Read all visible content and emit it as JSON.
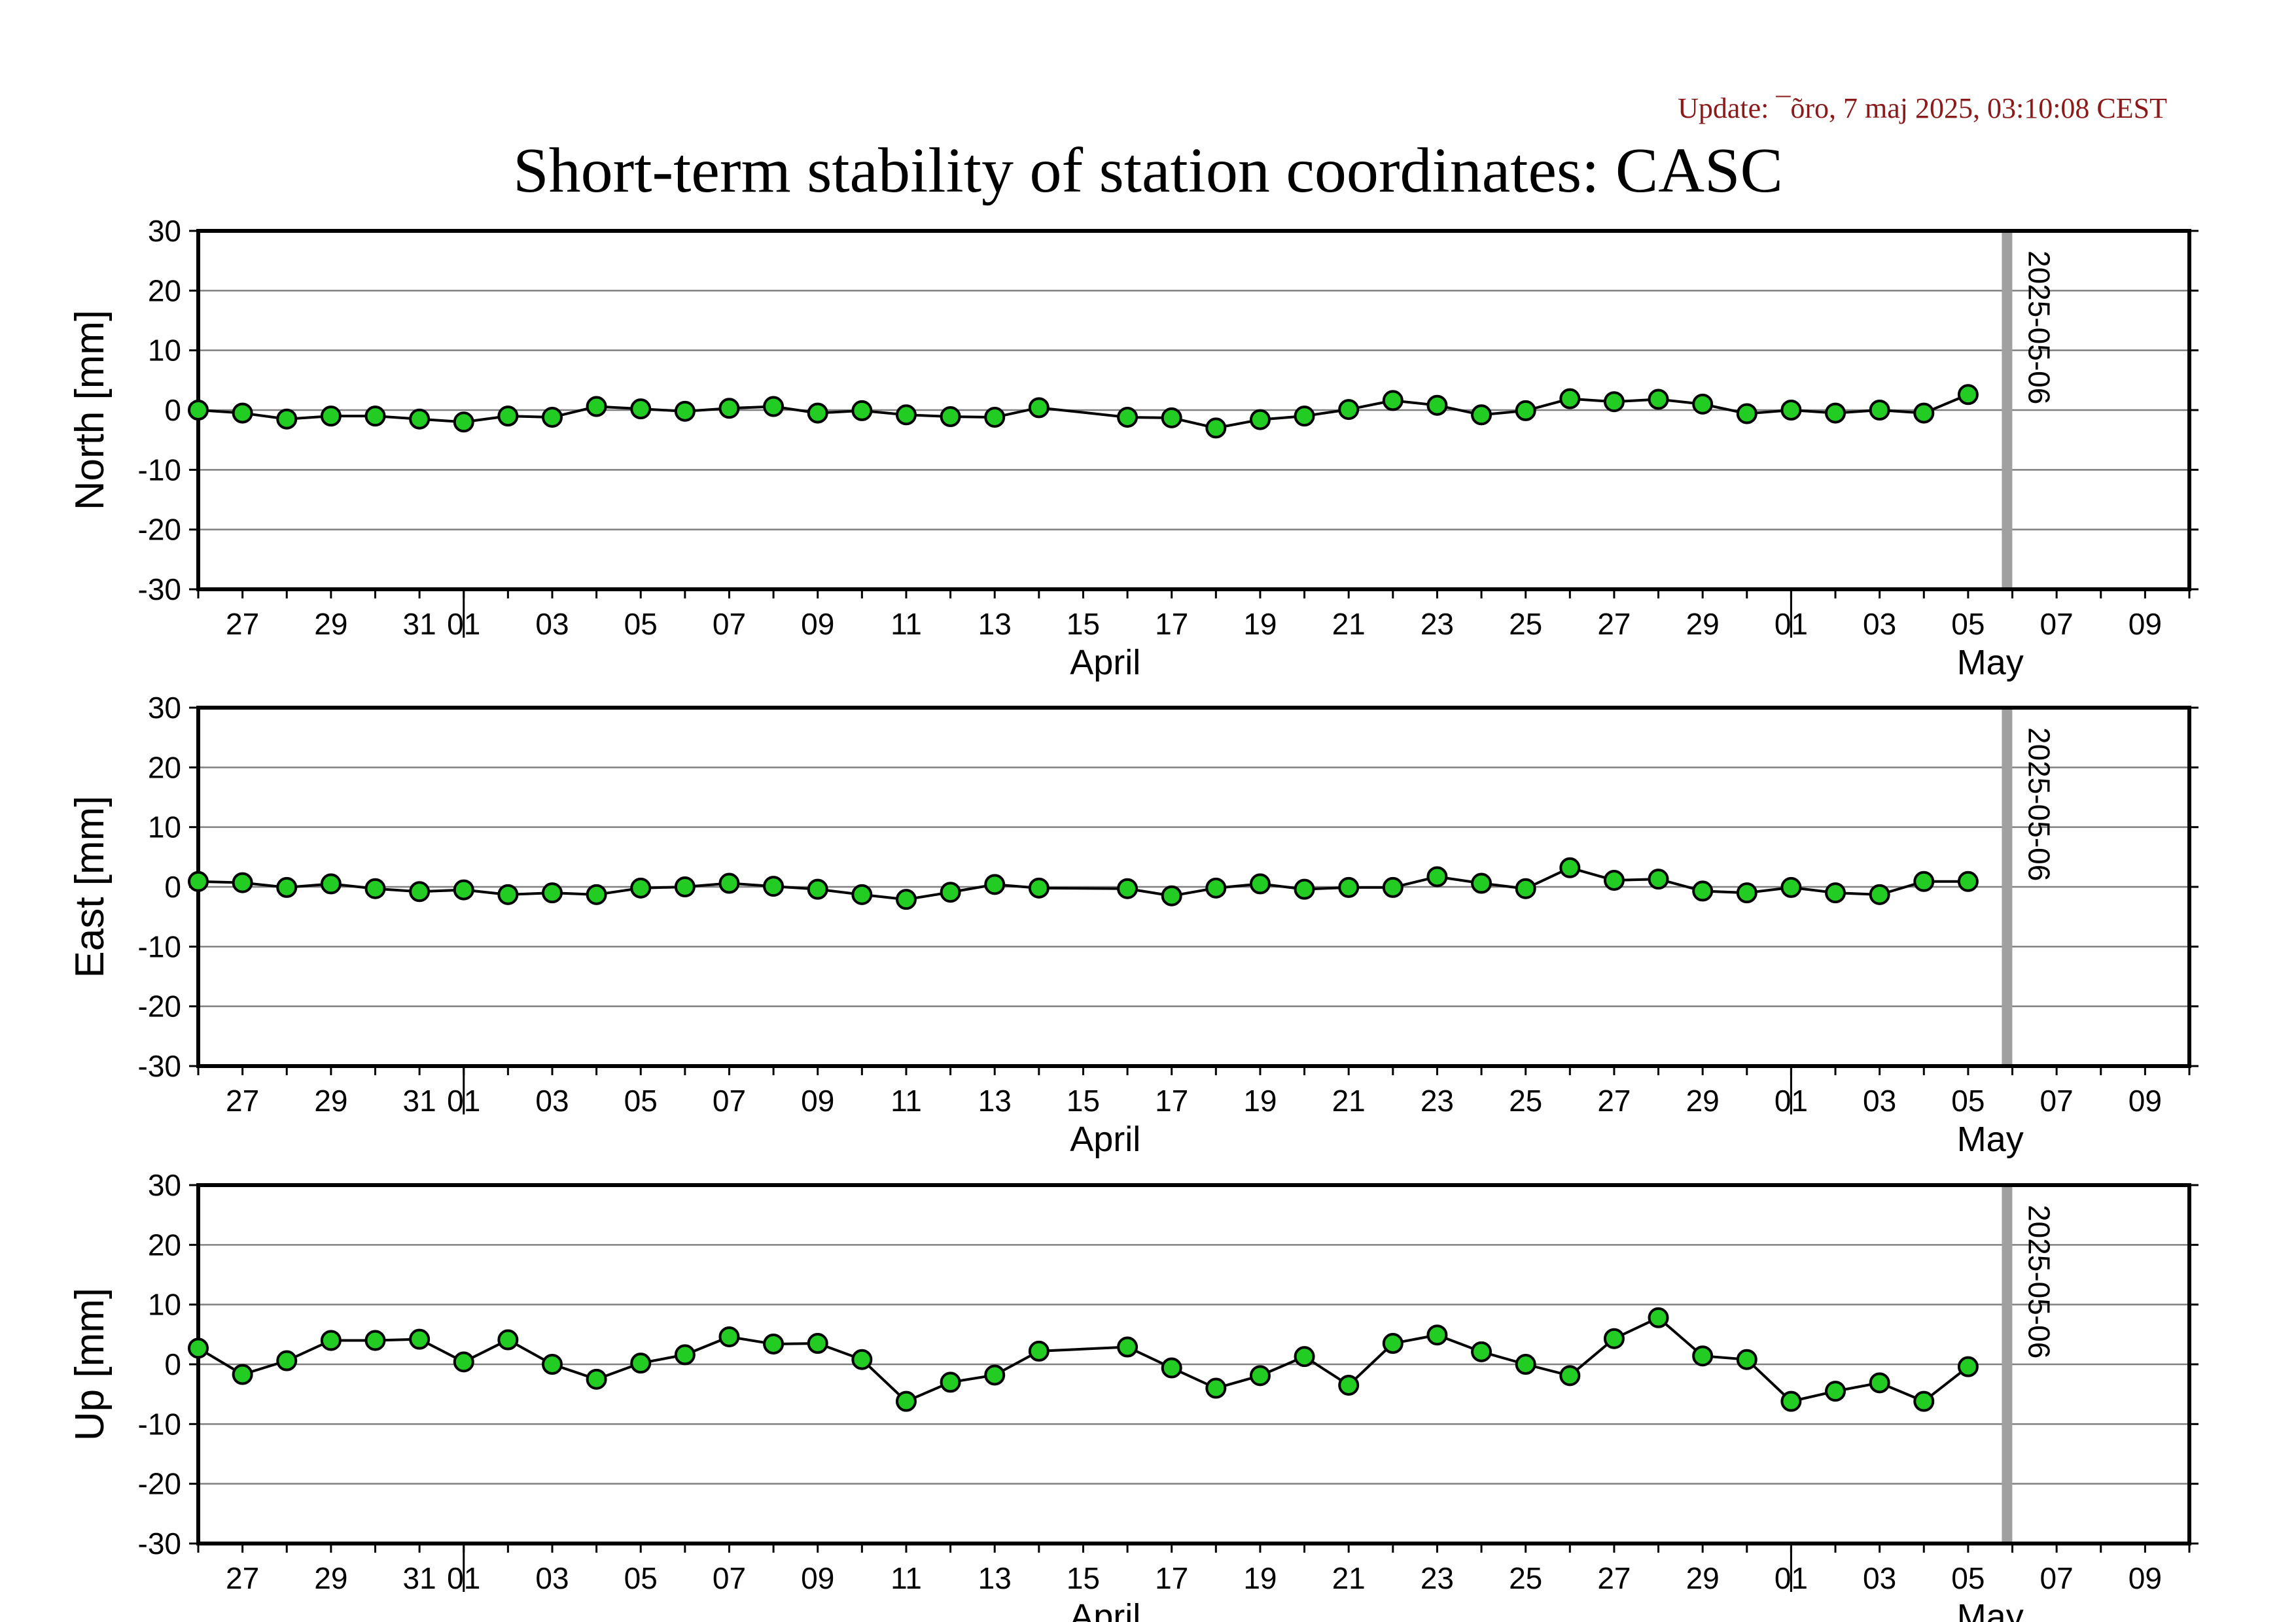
{
  "header": {
    "update": "Update: ¯õro, 7 maj 2025, 03:10:08 CEST",
    "title": "Short-term stability of station coordinates: CASC"
  },
  "colors": {
    "marker_fill": "#22cc22",
    "marker_stroke": "#000000",
    "line": "#000000",
    "grid": "#808080",
    "current_date_band": "#a0a0a0",
    "update_text": "#8b1a1a"
  },
  "chart_data": [
    {
      "type": "line",
      "ylabel": "North [mm]",
      "ylim": [
        -30,
        30
      ],
      "yticks": [
        30,
        20,
        10,
        0,
        -10,
        -20,
        -30
      ],
      "grid": true,
      "marker_date": "2025-05-06",
      "x_range": [
        "2025-03-26",
        "2025-05-10"
      ],
      "x_tick_dates": [
        "2025-03-27",
        "2025-03-29",
        "2025-03-31",
        "2025-04-01",
        "2025-04-03",
        "2025-04-05",
        "2025-04-07",
        "2025-04-09",
        "2025-04-11",
        "2025-04-13",
        "2025-04-15",
        "2025-04-17",
        "2025-04-19",
        "2025-04-21",
        "2025-04-23",
        "2025-04-25",
        "2025-04-27",
        "2025-04-29",
        "2025-05-01",
        "2025-05-03",
        "2025-05-05",
        "2025-05-07",
        "2025-05-09"
      ],
      "x_tick_labels": [
        "27",
        "29",
        "31",
        "01",
        "03",
        "05",
        "07",
        "09",
        "11",
        "13",
        "15",
        "17",
        "19",
        "21",
        "23",
        "25",
        "27",
        "29",
        "01",
        "03",
        "05",
        "07",
        "09"
      ],
      "month_labels": [
        {
          "date": "2025-04-15",
          "label": "April"
        },
        {
          "date": "2025-05-05",
          "label": "May"
        }
      ],
      "month_boundaries": [
        "2025-04-01",
        "2025-05-01"
      ],
      "x": [
        "2025-03-26",
        "2025-03-27",
        "2025-03-28",
        "2025-03-29",
        "2025-03-30",
        "2025-03-31",
        "2025-04-01",
        "2025-04-02",
        "2025-04-03",
        "2025-04-04",
        "2025-04-05",
        "2025-04-06",
        "2025-04-07",
        "2025-04-08",
        "2025-04-09",
        "2025-04-10",
        "2025-04-11",
        "2025-04-12",
        "2025-04-13",
        "2025-04-14",
        "2025-04-16",
        "2025-04-17",
        "2025-04-18",
        "2025-04-19",
        "2025-04-20",
        "2025-04-21",
        "2025-04-22",
        "2025-04-23",
        "2025-04-24",
        "2025-04-25",
        "2025-04-26",
        "2025-04-27",
        "2025-04-28",
        "2025-04-29",
        "2025-04-30",
        "2025-05-01",
        "2025-05-02",
        "2025-05-03",
        "2025-05-04",
        "2025-05-05"
      ],
      "values": [
        0.0,
        -0.5,
        -1.5,
        -1.0,
        -1.0,
        -1.5,
        -2.0,
        -1.0,
        -1.2,
        0.6,
        0.2,
        -0.2,
        0.3,
        0.6,
        -0.5,
        -0.1,
        -0.8,
        -1.1,
        -1.2,
        0.4,
        -1.2,
        -1.3,
        -3.0,
        -1.6,
        -1.0,
        0.1,
        1.6,
        0.8,
        -0.8,
        -0.1,
        1.9,
        1.4,
        1.8,
        1.0,
        -0.6,
        0.0,
        -0.5,
        0.0,
        -0.5,
        2.6
      ]
    },
    {
      "type": "line",
      "ylabel": "East [mm]",
      "ylim": [
        -30,
        30
      ],
      "yticks": [
        30,
        20,
        10,
        0,
        -10,
        -20,
        -30
      ],
      "grid": true,
      "marker_date": "2025-05-06",
      "x_range": [
        "2025-03-26",
        "2025-05-10"
      ],
      "x_tick_dates": [
        "2025-03-27",
        "2025-03-29",
        "2025-03-31",
        "2025-04-01",
        "2025-04-03",
        "2025-04-05",
        "2025-04-07",
        "2025-04-09",
        "2025-04-11",
        "2025-04-13",
        "2025-04-15",
        "2025-04-17",
        "2025-04-19",
        "2025-04-21",
        "2025-04-23",
        "2025-04-25",
        "2025-04-27",
        "2025-04-29",
        "2025-05-01",
        "2025-05-03",
        "2025-05-05",
        "2025-05-07",
        "2025-05-09"
      ],
      "x_tick_labels": [
        "27",
        "29",
        "31",
        "01",
        "03",
        "05",
        "07",
        "09",
        "11",
        "13",
        "15",
        "17",
        "19",
        "21",
        "23",
        "25",
        "27",
        "29",
        "01",
        "03",
        "05",
        "07",
        "09"
      ],
      "month_labels": [
        {
          "date": "2025-04-15",
          "label": "April"
        },
        {
          "date": "2025-05-05",
          "label": "May"
        }
      ],
      "month_boundaries": [
        "2025-04-01",
        "2025-05-01"
      ],
      "x": [
        "2025-03-26",
        "2025-03-27",
        "2025-03-28",
        "2025-03-29",
        "2025-03-30",
        "2025-03-31",
        "2025-04-01",
        "2025-04-02",
        "2025-04-03",
        "2025-04-04",
        "2025-04-05",
        "2025-04-06",
        "2025-04-07",
        "2025-04-08",
        "2025-04-09",
        "2025-04-10",
        "2025-04-11",
        "2025-04-12",
        "2025-04-13",
        "2025-04-14",
        "2025-04-16",
        "2025-04-17",
        "2025-04-18",
        "2025-04-19",
        "2025-04-20",
        "2025-04-21",
        "2025-04-22",
        "2025-04-23",
        "2025-04-24",
        "2025-04-25",
        "2025-04-26",
        "2025-04-27",
        "2025-04-28",
        "2025-04-29",
        "2025-04-30",
        "2025-05-01",
        "2025-05-02",
        "2025-05-03",
        "2025-05-04",
        "2025-05-05"
      ],
      "values": [
        0.9,
        0.7,
        -0.1,
        0.5,
        -0.3,
        -0.8,
        -0.5,
        -1.3,
        -1.0,
        -1.3,
        -0.2,
        0.0,
        0.6,
        0.1,
        -0.4,
        -1.3,
        -2.1,
        -0.9,
        0.4,
        -0.2,
        -0.3,
        -1.5,
        -0.2,
        0.5,
        -0.4,
        -0.1,
        -0.1,
        1.7,
        0.6,
        -0.3,
        3.2,
        1.1,
        1.3,
        -0.7,
        -1.0,
        -0.1,
        -1.0,
        -1.3,
        0.9,
        0.9
      ]
    },
    {
      "type": "line",
      "ylabel": "Up [mm]",
      "ylim": [
        -30,
        30
      ],
      "yticks": [
        30,
        20,
        10,
        0,
        -10,
        -20,
        -30
      ],
      "grid": true,
      "marker_date": "2025-05-06",
      "x_range": [
        "2025-03-26",
        "2025-05-10"
      ],
      "x_tick_dates": [
        "2025-03-27",
        "2025-03-29",
        "2025-03-31",
        "2025-04-01",
        "2025-04-03",
        "2025-04-05",
        "2025-04-07",
        "2025-04-09",
        "2025-04-11",
        "2025-04-13",
        "2025-04-15",
        "2025-04-17",
        "2025-04-19",
        "2025-04-21",
        "2025-04-23",
        "2025-04-25",
        "2025-04-27",
        "2025-04-29",
        "2025-05-01",
        "2025-05-03",
        "2025-05-05",
        "2025-05-07",
        "2025-05-09"
      ],
      "x_tick_labels": [
        "27",
        "29",
        "31",
        "01",
        "03",
        "05",
        "07",
        "09",
        "11",
        "13",
        "15",
        "17",
        "19",
        "21",
        "23",
        "25",
        "27",
        "29",
        "01",
        "03",
        "05",
        "07",
        "09"
      ],
      "month_labels": [
        {
          "date": "2025-04-15",
          "label": "April"
        },
        {
          "date": "2025-05-05",
          "label": "May"
        }
      ],
      "month_boundaries": [
        "2025-04-01",
        "2025-05-01"
      ],
      "x": [
        "2025-03-26",
        "2025-03-27",
        "2025-03-28",
        "2025-03-29",
        "2025-03-30",
        "2025-03-31",
        "2025-04-01",
        "2025-04-02",
        "2025-04-03",
        "2025-04-04",
        "2025-04-05",
        "2025-04-06",
        "2025-04-07",
        "2025-04-08",
        "2025-04-09",
        "2025-04-10",
        "2025-04-11",
        "2025-04-12",
        "2025-04-13",
        "2025-04-14",
        "2025-04-16",
        "2025-04-17",
        "2025-04-18",
        "2025-04-19",
        "2025-04-20",
        "2025-04-21",
        "2025-04-22",
        "2025-04-23",
        "2025-04-24",
        "2025-04-25",
        "2025-04-26",
        "2025-04-27",
        "2025-04-28",
        "2025-04-29",
        "2025-04-30",
        "2025-05-01",
        "2025-05-02",
        "2025-05-03",
        "2025-05-04",
        "2025-05-05"
      ],
      "values": [
        2.7,
        -1.7,
        0.6,
        4.0,
        4.0,
        4.2,
        0.4,
        4.1,
        0.0,
        -2.5,
        0.2,
        1.6,
        4.6,
        3.4,
        3.5,
        0.8,
        -6.2,
        -3.0,
        -1.8,
        2.2,
        2.9,
        -0.6,
        -4.0,
        -1.9,
        1.3,
        -3.5,
        3.5,
        4.9,
        2.1,
        0.0,
        -1.9,
        4.3,
        7.8,
        1.4,
        0.8,
        -6.2,
        -4.5,
        -3.1,
        -6.2,
        -0.4
      ]
    }
  ]
}
